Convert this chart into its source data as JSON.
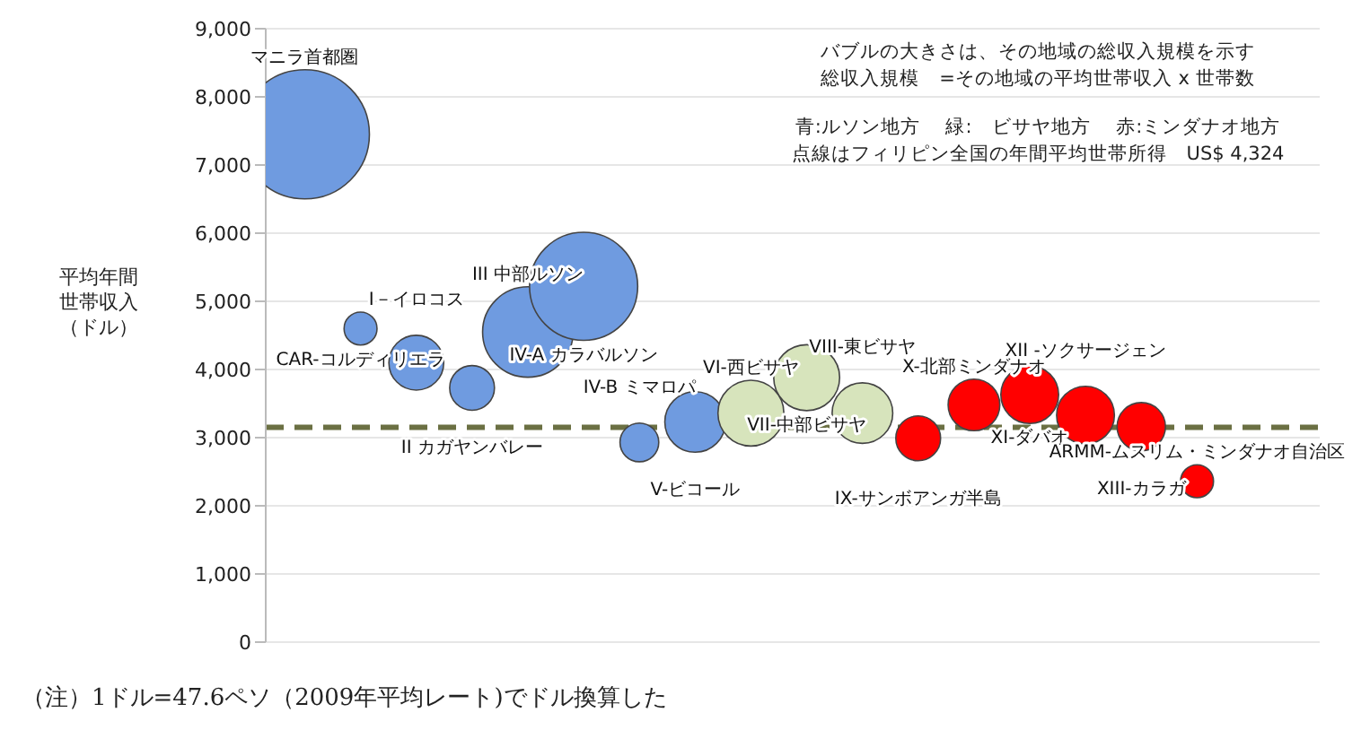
{
  "chart_data": {
    "type": "bubble",
    "ylabel": "平均年間世帯収入（ドル）",
    "categories": [
      "マニラ首都圏",
      "CAR-コルディリエラ",
      "I－イロコス",
      "II カガヤンバレー",
      "III 中部ルソン",
      "IV-A カラバルソン",
      "IV-B ミマロパ",
      "V-ビコール",
      "VI-西ビサヤ",
      "VII-中部ビサヤ",
      "VIII-東ビサヤ",
      "IX-サンボアンガ半島",
      "X-北部ミンダナオ",
      "XI-ダバオ",
      "XII -ソクサージェン",
      "XIII-カラガ",
      "ARMM-ムスリム・ミンダナオ自治区"
    ],
    "values": [
      7450,
      4600,
      4100,
      3730,
      4550,
      5220,
      2930,
      3230,
      3360,
      3880,
      3360,
      2990,
      3480,
      3630,
      3330,
      3160,
      2360
    ],
    "sizes": [
      1,
      0.065,
      0.18,
      0.12,
      0.49,
      0.7,
      0.09,
      0.22,
      0.26,
      0.26,
      0.22,
      0.12,
      0.16,
      0.2,
      0.2,
      0.14,
      0.065
    ],
    "colors": [
      "#6f9be0",
      "#6f9be0",
      "#6f9be0",
      "#6f9be0",
      "#6f9be0",
      "#6f9be0",
      "#6f9be0",
      "#6f9be0",
      "#d7e4bc",
      "#d7e4bc",
      "#d7e4bc",
      "#ff0000",
      "#ff0000",
      "#ff0000",
      "#ff0000",
      "#ff0000",
      "#ff0000"
    ],
    "ylim": [
      0,
      9000
    ],
    "yticks": [
      {
        "value": 0,
        "label": "0"
      },
      {
        "value": 1000,
        "label": "1,000"
      },
      {
        "value": 2000,
        "label": "2,000"
      },
      {
        "value": 3000,
        "label": "3,000"
      },
      {
        "value": 4000,
        "label": "4,000"
      },
      {
        "value": 5000,
        "label": "5,000"
      },
      {
        "value": 6000,
        "label": "6,000"
      },
      {
        "value": 7000,
        "label": "7,000"
      },
      {
        "value": 8000,
        "label": "8,000"
      },
      {
        "value": 9000,
        "label": "9,000"
      }
    ],
    "grid": "y",
    "tick_labels": "y",
    "ref_lines": [
      {
        "axis": "y",
        "value": 3150,
        "color": "#6b7043",
        "line_style": "dashed"
      }
    ],
    "annotations": [
      "バブルの大きさは、その地域の総収入規模を示す",
      "総収入規模　=その地域の平均世帯収入 x 世帯数",
      "青:ルソン地方　 緑:　ビサヤ地方　 赤:ミンダナオ地方",
      "点線はフィリピン全国の年間平均世帯所得　US$ 4,324",
      "（注）1ドル=47.6ペソ（2009年平均レート)でドル換算した"
    ]
  }
}
